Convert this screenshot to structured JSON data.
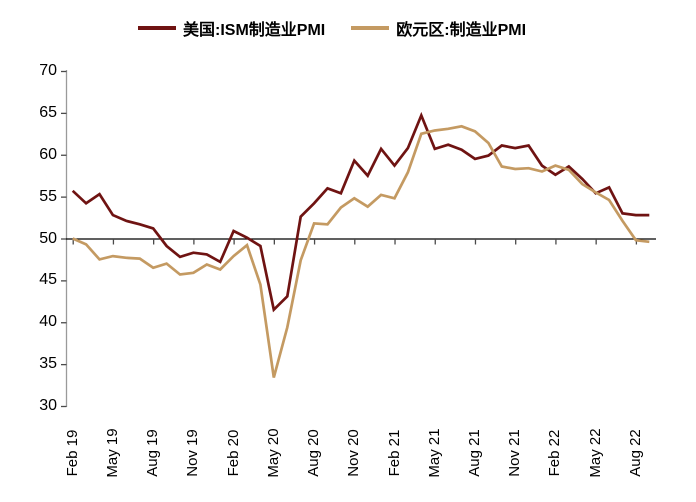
{
  "figure": {
    "background": "#ffffff",
    "axis_line_color": "#9a9a9a",
    "tick_color": "#4a4a4a",
    "baseline_color": "#000000"
  },
  "chart_data": {
    "type": "line",
    "title": "",
    "xlabel": "",
    "ylabel": "",
    "grid": false,
    "legend_position": "top-center",
    "ylim": [
      30,
      70
    ],
    "y_ticks": [
      70,
      65,
      60,
      55,
      50,
      45,
      40,
      35,
      30
    ],
    "baseline": 50,
    "x_tick_labels": [
      "Feb 19",
      "May 19",
      "Aug 19",
      "Nov 19",
      "Feb 20",
      "May 20",
      "Aug 20",
      "Nov 20",
      "Feb 21",
      "May 21",
      "Aug 21",
      "Nov 21",
      "Feb 22",
      "May 22",
      "Aug 22"
    ],
    "x": [
      "Jan 19",
      "Feb 19",
      "Mar 19",
      "Apr 19",
      "May 19",
      "Jun 19",
      "Jul 19",
      "Aug 19",
      "Sep 19",
      "Oct 19",
      "Nov 19",
      "Dec 19",
      "Jan 20",
      "Feb 20",
      "Mar 20",
      "Apr 20",
      "May 20",
      "Jun 20",
      "Jul 20",
      "Aug 20",
      "Sep 20",
      "Oct 20",
      "Nov 20",
      "Dec 20",
      "Jan 21",
      "Feb 21",
      "Mar 21",
      "Apr 21",
      "May 21",
      "Jun 21",
      "Jul 21",
      "Aug 21",
      "Sep 21",
      "Oct 21",
      "Nov 21",
      "Dec 21",
      "Jan 22",
      "Feb 22",
      "Mar 22",
      "Apr 22",
      "May 22",
      "Jun 22",
      "Jul 22",
      "Aug 22"
    ],
    "series": [
      {
        "name": "美国:ISM制造业PMI",
        "color": "#6f1312",
        "values": [
          55.7,
          54.2,
          55.3,
          52.8,
          52.1,
          51.7,
          51.2,
          49.1,
          47.8,
          48.3,
          48.1,
          47.2,
          50.9,
          50.1,
          49.1,
          41.5,
          43.1,
          52.6,
          54.2,
          56.0,
          55.4,
          59.3,
          57.5,
          60.7,
          58.7,
          60.8,
          64.7,
          60.7,
          61.2,
          60.6,
          59.5,
          59.9,
          61.1,
          60.8,
          61.1,
          58.7,
          57.6,
          58.6,
          57.1,
          55.4,
          56.1,
          53.0,
          52.8,
          52.8
        ]
      },
      {
        "name": "欧元区:制造业PMI",
        "color": "#c49a62",
        "values": [
          50.0,
          49.3,
          47.5,
          47.9,
          47.7,
          47.6,
          46.5,
          47.0,
          45.7,
          45.9,
          46.9,
          46.3,
          47.9,
          49.2,
          44.5,
          33.4,
          39.4,
          47.4,
          51.8,
          51.7,
          53.7,
          54.8,
          53.8,
          55.2,
          54.8,
          57.9,
          62.5,
          62.9,
          63.1,
          63.4,
          62.8,
          61.4,
          58.6,
          58.3,
          58.4,
          58.0,
          58.7,
          58.2,
          56.5,
          55.5,
          54.6,
          52.1,
          49.8,
          49.6
        ]
      }
    ]
  }
}
